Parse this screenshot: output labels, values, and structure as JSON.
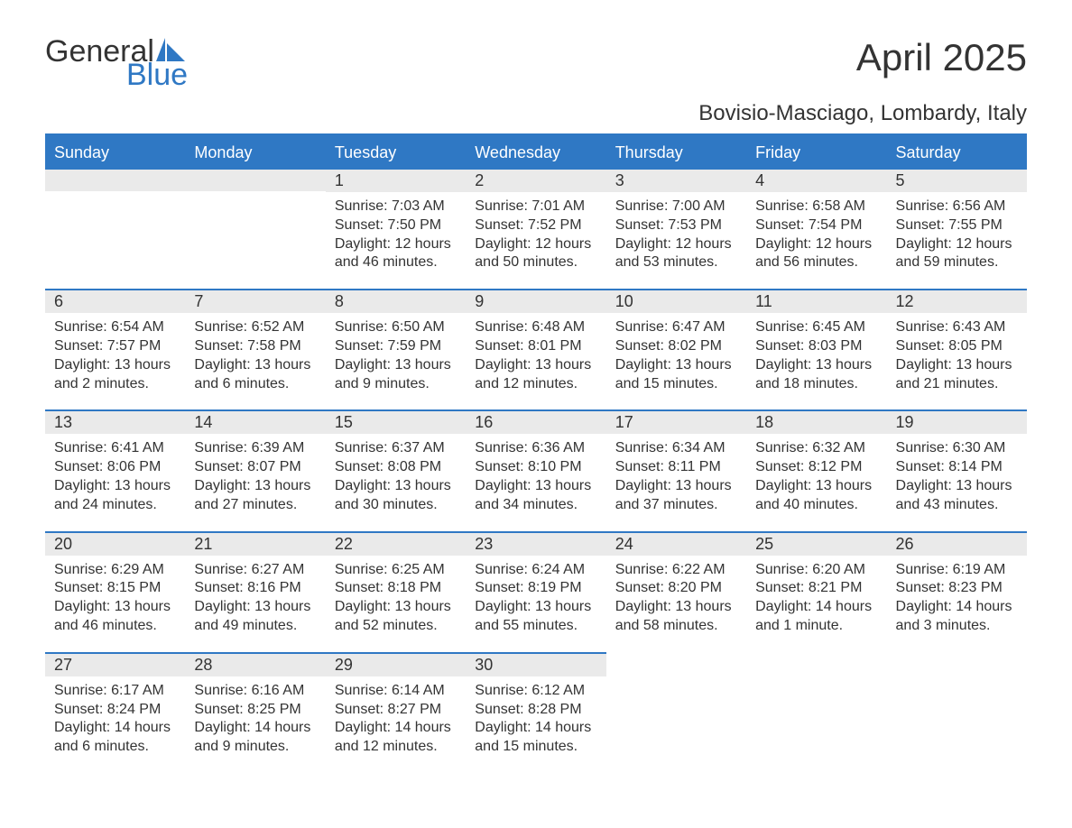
{
  "logo": {
    "general": "General",
    "blue": "Blue",
    "sail_color": "#2f78c4"
  },
  "title": "April 2025",
  "subtitle": "Bovisio-Masciago, Lombardy, Italy",
  "colors": {
    "header_bg": "#2f78c4",
    "header_text": "#ffffff",
    "daynum_bg": "#eaeaea",
    "text": "#333333",
    "rule": "#2f78c4"
  },
  "weekdays": [
    "Sunday",
    "Monday",
    "Tuesday",
    "Wednesday",
    "Thursday",
    "Friday",
    "Saturday"
  ],
  "weeks": [
    [
      {
        "day": "",
        "sunrise": "",
        "sunset": "",
        "daylight1": "",
        "daylight2": ""
      },
      {
        "day": "",
        "sunrise": "",
        "sunset": "",
        "daylight1": "",
        "daylight2": ""
      },
      {
        "day": "1",
        "sunrise": "Sunrise: 7:03 AM",
        "sunset": "Sunset: 7:50 PM",
        "daylight1": "Daylight: 12 hours",
        "daylight2": "and 46 minutes."
      },
      {
        "day": "2",
        "sunrise": "Sunrise: 7:01 AM",
        "sunset": "Sunset: 7:52 PM",
        "daylight1": "Daylight: 12 hours",
        "daylight2": "and 50 minutes."
      },
      {
        "day": "3",
        "sunrise": "Sunrise: 7:00 AM",
        "sunset": "Sunset: 7:53 PM",
        "daylight1": "Daylight: 12 hours",
        "daylight2": "and 53 minutes."
      },
      {
        "day": "4",
        "sunrise": "Sunrise: 6:58 AM",
        "sunset": "Sunset: 7:54 PM",
        "daylight1": "Daylight: 12 hours",
        "daylight2": "and 56 minutes."
      },
      {
        "day": "5",
        "sunrise": "Sunrise: 6:56 AM",
        "sunset": "Sunset: 7:55 PM",
        "daylight1": "Daylight: 12 hours",
        "daylight2": "and 59 minutes."
      }
    ],
    [
      {
        "day": "6",
        "sunrise": "Sunrise: 6:54 AM",
        "sunset": "Sunset: 7:57 PM",
        "daylight1": "Daylight: 13 hours",
        "daylight2": "and 2 minutes."
      },
      {
        "day": "7",
        "sunrise": "Sunrise: 6:52 AM",
        "sunset": "Sunset: 7:58 PM",
        "daylight1": "Daylight: 13 hours",
        "daylight2": "and 6 minutes."
      },
      {
        "day": "8",
        "sunrise": "Sunrise: 6:50 AM",
        "sunset": "Sunset: 7:59 PM",
        "daylight1": "Daylight: 13 hours",
        "daylight2": "and 9 minutes."
      },
      {
        "day": "9",
        "sunrise": "Sunrise: 6:48 AM",
        "sunset": "Sunset: 8:01 PM",
        "daylight1": "Daylight: 13 hours",
        "daylight2": "and 12 minutes."
      },
      {
        "day": "10",
        "sunrise": "Sunrise: 6:47 AM",
        "sunset": "Sunset: 8:02 PM",
        "daylight1": "Daylight: 13 hours",
        "daylight2": "and 15 minutes."
      },
      {
        "day": "11",
        "sunrise": "Sunrise: 6:45 AM",
        "sunset": "Sunset: 8:03 PM",
        "daylight1": "Daylight: 13 hours",
        "daylight2": "and 18 minutes."
      },
      {
        "day": "12",
        "sunrise": "Sunrise: 6:43 AM",
        "sunset": "Sunset: 8:05 PM",
        "daylight1": "Daylight: 13 hours",
        "daylight2": "and 21 minutes."
      }
    ],
    [
      {
        "day": "13",
        "sunrise": "Sunrise: 6:41 AM",
        "sunset": "Sunset: 8:06 PM",
        "daylight1": "Daylight: 13 hours",
        "daylight2": "and 24 minutes."
      },
      {
        "day": "14",
        "sunrise": "Sunrise: 6:39 AM",
        "sunset": "Sunset: 8:07 PM",
        "daylight1": "Daylight: 13 hours",
        "daylight2": "and 27 minutes."
      },
      {
        "day": "15",
        "sunrise": "Sunrise: 6:37 AM",
        "sunset": "Sunset: 8:08 PM",
        "daylight1": "Daylight: 13 hours",
        "daylight2": "and 30 minutes."
      },
      {
        "day": "16",
        "sunrise": "Sunrise: 6:36 AM",
        "sunset": "Sunset: 8:10 PM",
        "daylight1": "Daylight: 13 hours",
        "daylight2": "and 34 minutes."
      },
      {
        "day": "17",
        "sunrise": "Sunrise: 6:34 AM",
        "sunset": "Sunset: 8:11 PM",
        "daylight1": "Daylight: 13 hours",
        "daylight2": "and 37 minutes."
      },
      {
        "day": "18",
        "sunrise": "Sunrise: 6:32 AM",
        "sunset": "Sunset: 8:12 PM",
        "daylight1": "Daylight: 13 hours",
        "daylight2": "and 40 minutes."
      },
      {
        "day": "19",
        "sunrise": "Sunrise: 6:30 AM",
        "sunset": "Sunset: 8:14 PM",
        "daylight1": "Daylight: 13 hours",
        "daylight2": "and 43 minutes."
      }
    ],
    [
      {
        "day": "20",
        "sunrise": "Sunrise: 6:29 AM",
        "sunset": "Sunset: 8:15 PM",
        "daylight1": "Daylight: 13 hours",
        "daylight2": "and 46 minutes."
      },
      {
        "day": "21",
        "sunrise": "Sunrise: 6:27 AM",
        "sunset": "Sunset: 8:16 PM",
        "daylight1": "Daylight: 13 hours",
        "daylight2": "and 49 minutes."
      },
      {
        "day": "22",
        "sunrise": "Sunrise: 6:25 AM",
        "sunset": "Sunset: 8:18 PM",
        "daylight1": "Daylight: 13 hours",
        "daylight2": "and 52 minutes."
      },
      {
        "day": "23",
        "sunrise": "Sunrise: 6:24 AM",
        "sunset": "Sunset: 8:19 PM",
        "daylight1": "Daylight: 13 hours",
        "daylight2": "and 55 minutes."
      },
      {
        "day": "24",
        "sunrise": "Sunrise: 6:22 AM",
        "sunset": "Sunset: 8:20 PM",
        "daylight1": "Daylight: 13 hours",
        "daylight2": "and 58 minutes."
      },
      {
        "day": "25",
        "sunrise": "Sunrise: 6:20 AM",
        "sunset": "Sunset: 8:21 PM",
        "daylight1": "Daylight: 14 hours",
        "daylight2": "and 1 minute."
      },
      {
        "day": "26",
        "sunrise": "Sunrise: 6:19 AM",
        "sunset": "Sunset: 8:23 PM",
        "daylight1": "Daylight: 14 hours",
        "daylight2": "and 3 minutes."
      }
    ],
    [
      {
        "day": "27",
        "sunrise": "Sunrise: 6:17 AM",
        "sunset": "Sunset: 8:24 PM",
        "daylight1": "Daylight: 14 hours",
        "daylight2": "and 6 minutes."
      },
      {
        "day": "28",
        "sunrise": "Sunrise: 6:16 AM",
        "sunset": "Sunset: 8:25 PM",
        "daylight1": "Daylight: 14 hours",
        "daylight2": "and 9 minutes."
      },
      {
        "day": "29",
        "sunrise": "Sunrise: 6:14 AM",
        "sunset": "Sunset: 8:27 PM",
        "daylight1": "Daylight: 14 hours",
        "daylight2": "and 12 minutes."
      },
      {
        "day": "30",
        "sunrise": "Sunrise: 6:12 AM",
        "sunset": "Sunset: 8:28 PM",
        "daylight1": "Daylight: 14 hours",
        "daylight2": "and 15 minutes."
      },
      {
        "day": "",
        "sunrise": "",
        "sunset": "",
        "daylight1": "",
        "daylight2": ""
      },
      {
        "day": "",
        "sunrise": "",
        "sunset": "",
        "daylight1": "",
        "daylight2": ""
      },
      {
        "day": "",
        "sunrise": "",
        "sunset": "",
        "daylight1": "",
        "daylight2": ""
      }
    ]
  ]
}
